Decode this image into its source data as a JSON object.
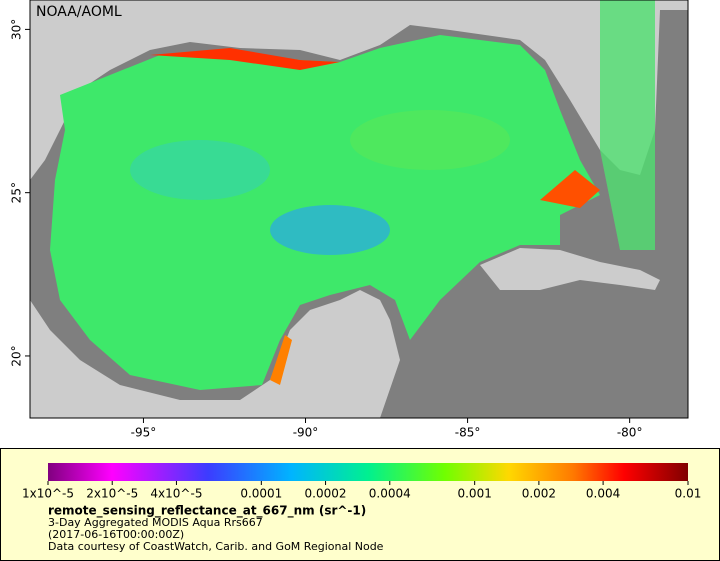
{
  "map": {
    "source": "NOAA/AOML",
    "lon": {
      "lim": [
        -98.5,
        -78.2
      ],
      "ticks": [
        {
          "value": -95,
          "label": "-95°"
        },
        {
          "value": -90,
          "label": "-90°"
        },
        {
          "value": -85,
          "label": "-85°"
        },
        {
          "value": -80,
          "label": "-80°"
        }
      ]
    },
    "lat": {
      "lim": [
        18.1,
        30.9
      ],
      "ticks": [
        {
          "value": 20,
          "label": "20°"
        },
        {
          "value": 25,
          "label": "25°"
        },
        {
          "value": 30,
          "label": "30°"
        }
      ]
    }
  },
  "colorbar": {
    "scale": "log",
    "lim": [
      1e-05,
      0.01
    ],
    "ticks": [
      {
        "value": 1e-05,
        "label": "1x10^-5"
      },
      {
        "value": 2e-05,
        "label": "2x10^-5"
      },
      {
        "value": 4e-05,
        "label": "4x10^-5"
      },
      0.0001,
      0.0002,
      0.0004,
      0.001,
      0.002,
      0.004,
      0.01
    ]
  },
  "legend": {
    "variable": "remote_sensing_reflectance_at_667_nm (sr^-1)",
    "dataset": "3-Day Aggregated MODIS Aqua Rrs667",
    "time": "(2017-06-16T00:00:00Z)",
    "credit": "Data courtesy of CoastWatch, Carib. and GoM Regional Node"
  }
}
